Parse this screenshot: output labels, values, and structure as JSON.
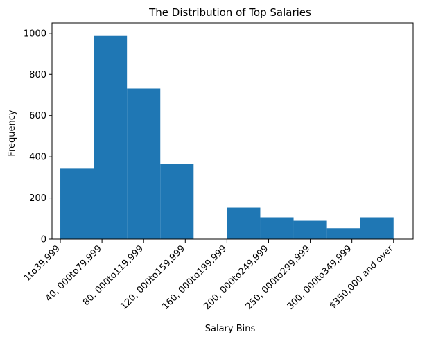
{
  "chart_data": {
    "type": "bar",
    "title": "The Distribution of Top Salaries",
    "xlabel": "Salary Bins",
    "ylabel": "Frequency",
    "ylim": [
      0,
      1050
    ],
    "yticks": [
      0,
      200,
      400,
      600,
      800,
      1000
    ],
    "xlim": [
      -0.2,
      8.47
    ],
    "xticks": [
      0,
      1,
      2,
      3,
      4,
      5,
      6,
      7,
      8
    ],
    "xtick_labels": [
      "1to39,999",
      "40, 000to79,999",
      "80, 000to119,999",
      "120, 000to159,999",
      "160, 000to199,999",
      "200, 000to249,999",
      "250, 000to299,999",
      "300, 000to349,999",
      "$350,000 and over"
    ],
    "bins": [
      {
        "start": 0.0,
        "end": 0.8,
        "value": 342
      },
      {
        "start": 0.8,
        "end": 1.6,
        "value": 987
      },
      {
        "start": 1.6,
        "end": 2.4,
        "value": 732
      },
      {
        "start": 2.4,
        "end": 3.2,
        "value": 364
      },
      {
        "start": 3.2,
        "end": 4.0,
        "value": 0
      },
      {
        "start": 4.0,
        "end": 4.8,
        "value": 153
      },
      {
        "start": 4.8,
        "end": 5.6,
        "value": 106
      },
      {
        "start": 5.6,
        "end": 6.4,
        "value": 89
      },
      {
        "start": 6.4,
        "end": 7.2,
        "value": 53
      },
      {
        "start": 7.2,
        "end": 8.0,
        "value": 106
      }
    ],
    "bar_color": "#1f77b4",
    "grid": false,
    "legend": false
  }
}
